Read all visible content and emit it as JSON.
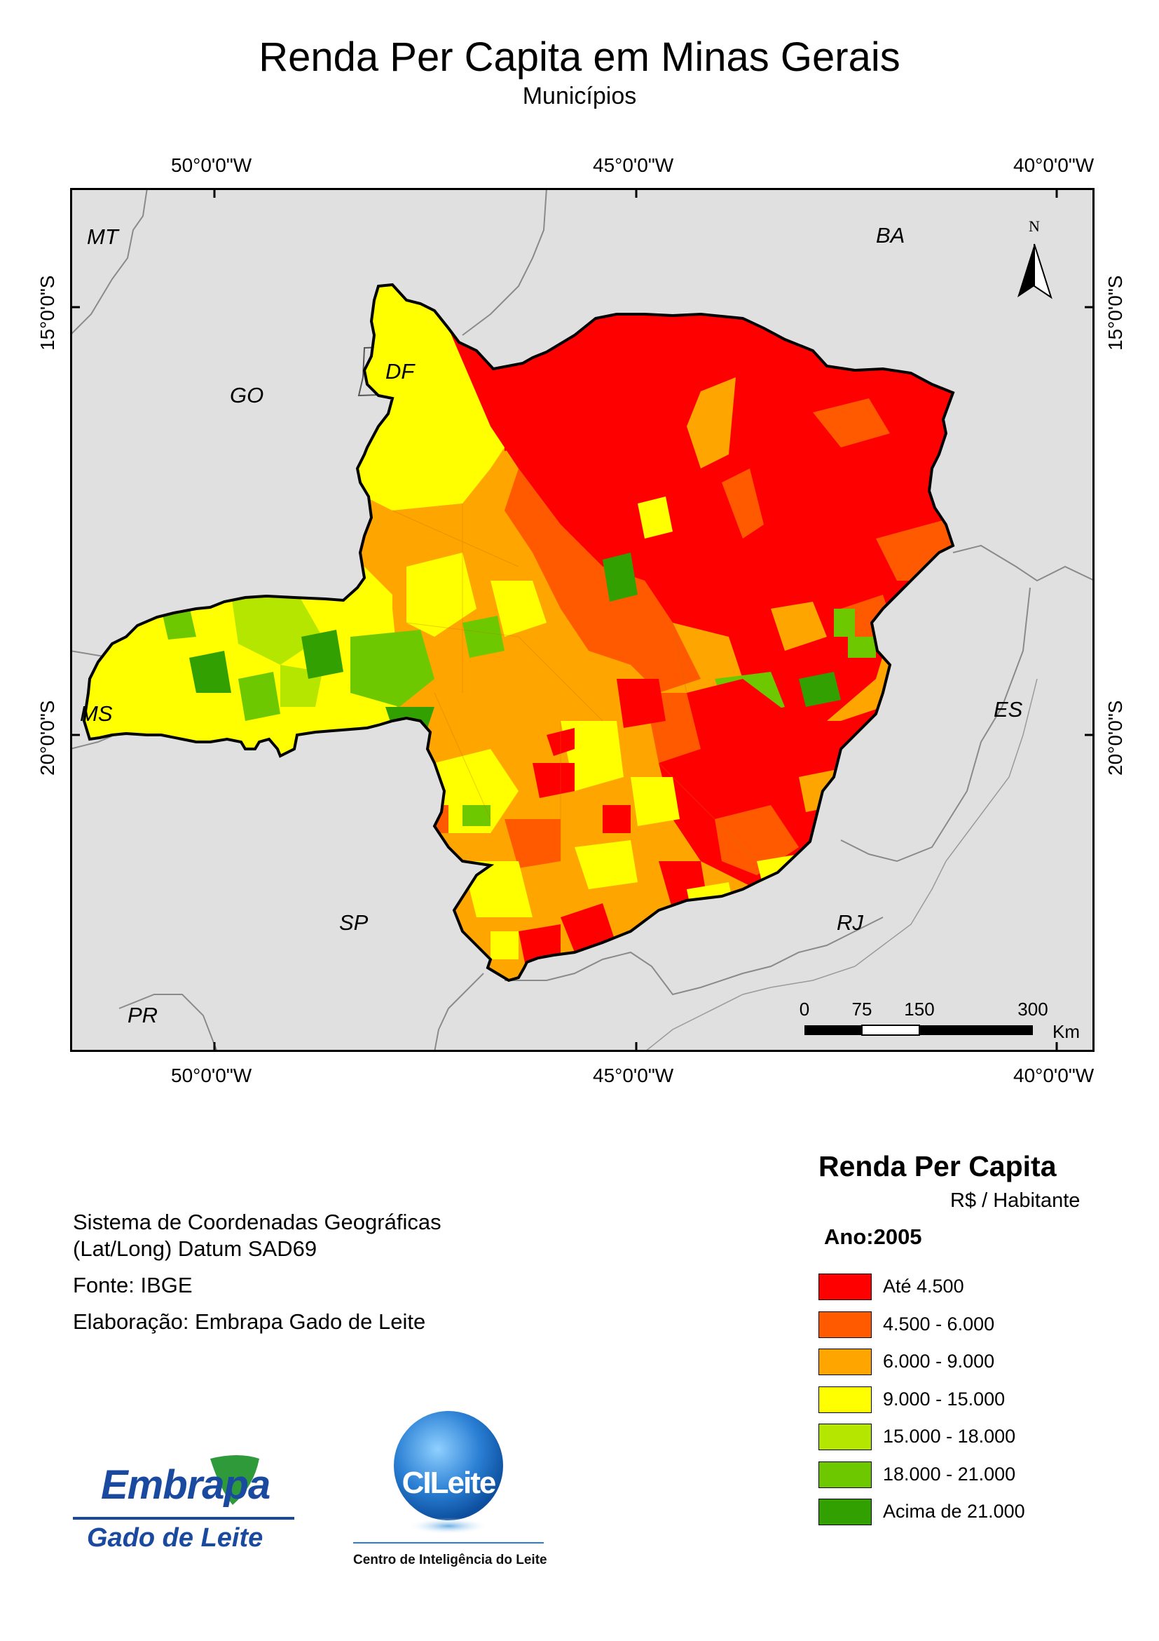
{
  "title": "Renda Per Capita em Minas Gerais",
  "subtitle": "Municípios",
  "grid": {
    "lon_labels": [
      "50°0'0\"W",
      "45°0'0\"W",
      "40°0'0\"W"
    ],
    "lat_labels": [
      "15°0'0\"S",
      "20°0'0\"S"
    ]
  },
  "states": [
    {
      "abbr": "MT"
    },
    {
      "abbr": "BA"
    },
    {
      "abbr": "GO"
    },
    {
      "abbr": "DF"
    },
    {
      "abbr": "MS"
    },
    {
      "abbr": "ES"
    },
    {
      "abbr": "SP"
    },
    {
      "abbr": "RJ"
    },
    {
      "abbr": "PR"
    }
  ],
  "north_arrow": "N",
  "scale_bar": {
    "ticks": [
      "0",
      "75",
      "150",
      "300"
    ],
    "unit": "Km"
  },
  "notes": {
    "coord_system_line1": "Sistema de Coordenadas Geográficas",
    "coord_system_line2": "(Lat/Long) Datum SAD69",
    "source": "Fonte: IBGE",
    "author": "Elaboração: Embrapa Gado de Leite"
  },
  "legend": {
    "title": "Renda Per Capita",
    "unit": "R$ / Habitante",
    "year": "Ano:2005",
    "classes": [
      {
        "label": "Até 4.500",
        "color": "#ff0000"
      },
      {
        "label": "4.500 - 6.000",
        "color": "#ff5a00"
      },
      {
        "label": "6.000 - 9.000",
        "color": "#ffa500"
      },
      {
        "label": "9.000 - 15.000",
        "color": "#ffff00"
      },
      {
        "label": "15.000 - 18.000",
        "color": "#b4e600"
      },
      {
        "label": "18.000 - 21.000",
        "color": "#6ec800"
      },
      {
        "label": "Acima de 21.000",
        "color": "#32a000"
      }
    ]
  },
  "logos": {
    "embrapa_word": "Embrapa",
    "embrapa_sub": "Gado de Leite",
    "cileite_word": "CILeite",
    "cileite_caption": "Centro de Inteligência do Leite"
  },
  "colors": {
    "map_background": "#e0e0e0",
    "border": "#000000",
    "embrapa_blue": "#1a4aa0",
    "cileite_blue": "#2a7fd4"
  }
}
